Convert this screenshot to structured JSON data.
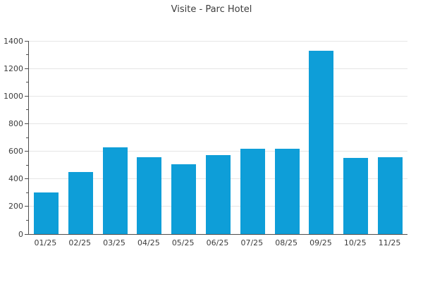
{
  "title": "Visite - Parc Hotel",
  "colors": {
    "bar": "#0e9ed8",
    "grid": "#e6e6e6",
    "axis": "#4d4d4d",
    "text": "#3d3d3d",
    "background": "#ffffff"
  },
  "chart_data": {
    "type": "bar",
    "title": "Visite - Parc Hotel",
    "categories": [
      "01/25",
      "02/25",
      "03/25",
      "04/25",
      "05/25",
      "06/25",
      "07/25",
      "08/25",
      "09/25",
      "10/25",
      "11/25"
    ],
    "values": [
      300,
      450,
      630,
      555,
      505,
      570,
      620,
      620,
      1330,
      550,
      555
    ],
    "xlabel": "",
    "ylabel": "",
    "ylim": [
      0,
      1400
    ],
    "ytick_step": 200,
    "ytick_labels": [
      "0",
      "200",
      "400",
      "600",
      "800",
      "1000",
      "1200",
      "1400"
    ],
    "yminor_step": 100,
    "grid": true,
    "legend": false,
    "bar_color": "#0e9ed8"
  }
}
